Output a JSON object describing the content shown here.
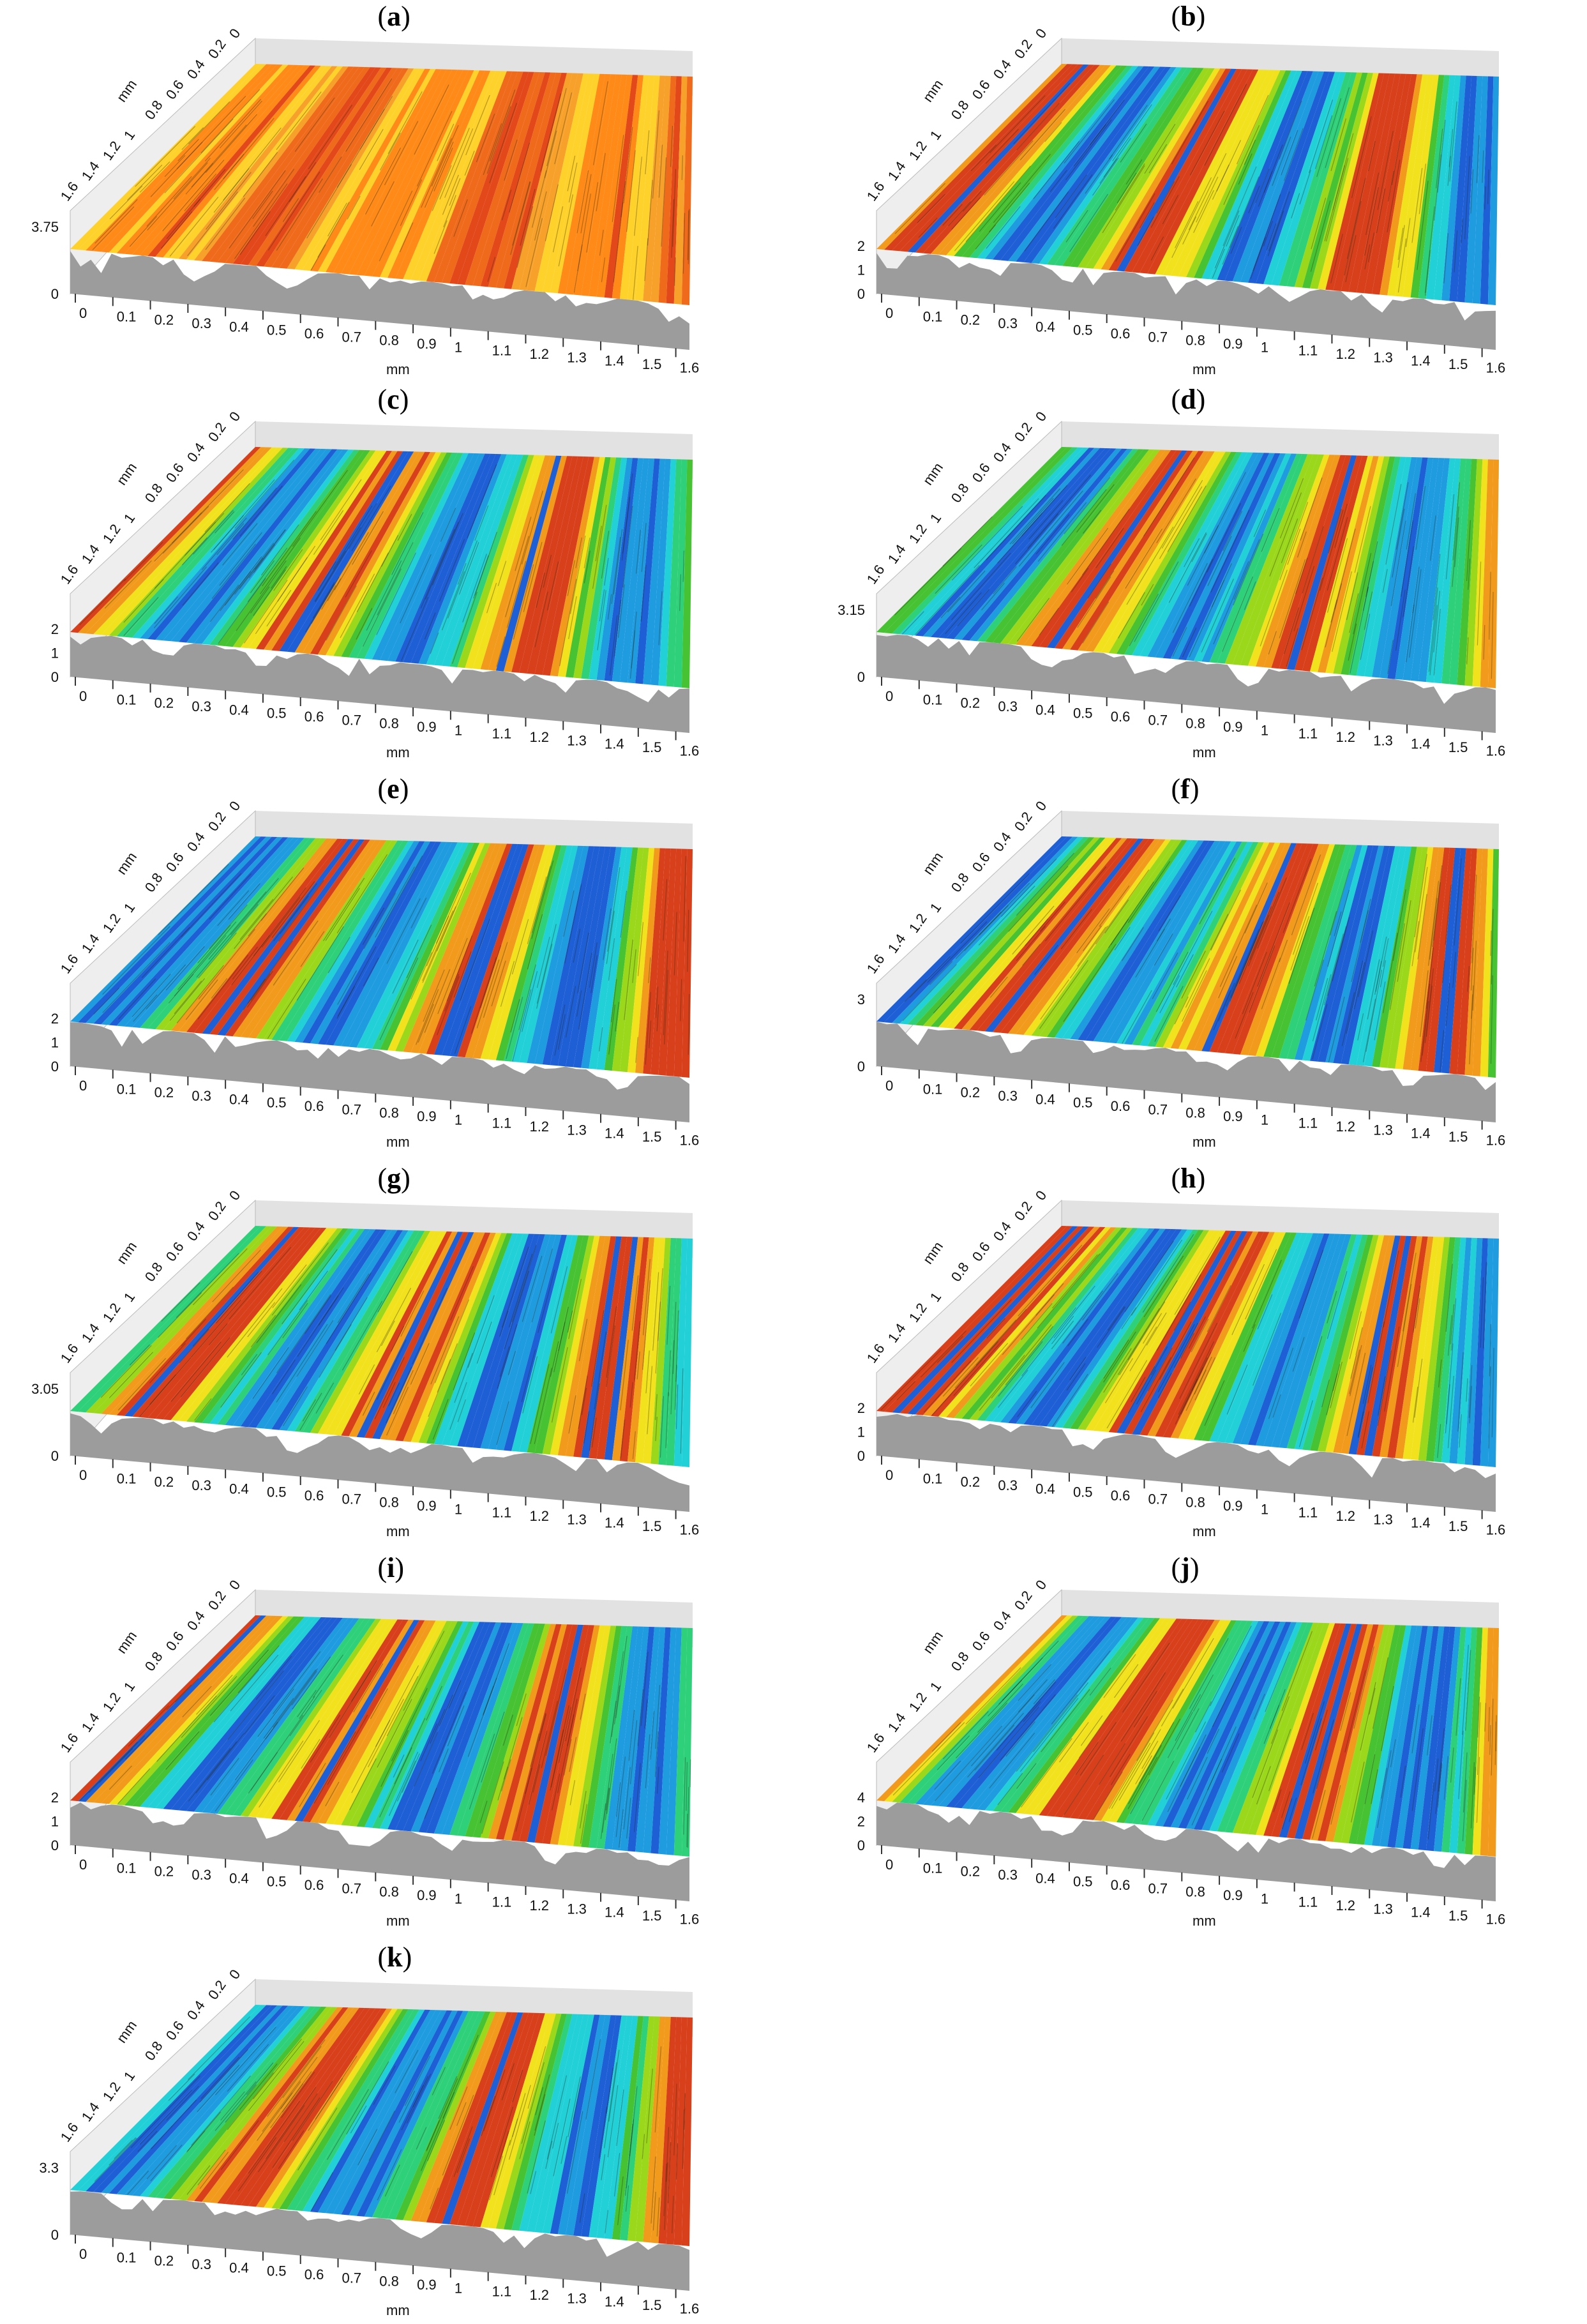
{
  "figure": {
    "panels": [
      {
        "id": "a",
        "z_labels": [
          "3.75",
          "0"
        ],
        "palette": "warm"
      },
      {
        "id": "b",
        "z_labels": [
          "2",
          "1",
          "0"
        ],
        "palette": "cool"
      },
      {
        "id": "c",
        "z_labels": [
          "2",
          "1",
          "0"
        ],
        "palette": "cool"
      },
      {
        "id": "d",
        "z_labels": [
          "3.15",
          "0"
        ],
        "palette": "cool"
      },
      {
        "id": "e",
        "z_labels": [
          "2",
          "1",
          "0"
        ],
        "palette": "cool"
      },
      {
        "id": "f",
        "z_labels": [
          "3",
          "0"
        ],
        "palette": "cool"
      },
      {
        "id": "g",
        "z_labels": [
          "3.05",
          "0"
        ],
        "palette": "cool"
      },
      {
        "id": "h",
        "z_labels": [
          "2",
          "1",
          "0"
        ],
        "palette": "cool"
      },
      {
        "id": "i",
        "z_labels": [
          "2",
          "1",
          "0"
        ],
        "palette": "cool"
      },
      {
        "id": "j",
        "z_labels": [
          "4",
          "2",
          "0"
        ],
        "palette": "cool"
      },
      {
        "id": "k",
        "z_labels": [
          "3.3",
          "0"
        ],
        "palette": "cool"
      }
    ],
    "x_axis": {
      "label": "mm",
      "ticks": [
        "0",
        "0.1",
        "0.2",
        "0.3",
        "0.4",
        "0.5",
        "0.6",
        "0.7",
        "0.8",
        "0.9",
        "1",
        "1.1",
        "1.2",
        "1.3",
        "1.4",
        "1.5",
        "1.6"
      ]
    },
    "y_axis": {
      "label": "mm",
      "ticks": [
        "1.6",
        "1.4",
        "1.2",
        "1",
        "0.8",
        "0.6",
        "0.4",
        "0.2",
        "0"
      ]
    },
    "colors": {
      "base": "#9c9c9c",
      "back_wall": "#e2e2e2",
      "warm": [
        "#e2481a",
        "#f06a1c",
        "#f7a12a",
        "#ffd22b",
        "#ff8a18"
      ],
      "cool": [
        "#1e5fd6",
        "#1f9be0",
        "#22d0d8",
        "#2fd07a",
        "#46c232",
        "#9bd81c",
        "#f2e21e",
        "#f29a1c",
        "#d8401c"
      ]
    }
  }
}
